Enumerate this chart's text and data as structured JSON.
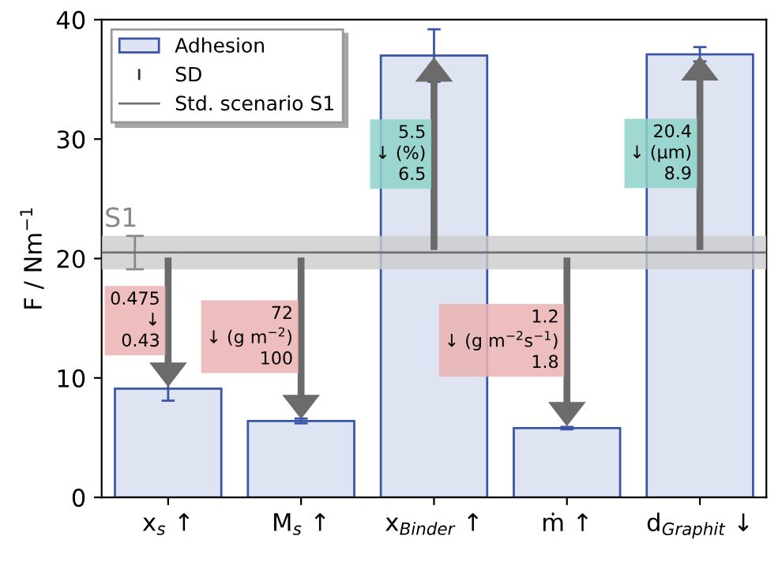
{
  "chart_data": {
    "type": "bar",
    "ylabel": "F / Nm$^{−1}$",
    "categories": [
      "x$_{s}$ ↑",
      "M$_{s}$ ↑",
      "x$_{Binder}$ ↑",
      "ṁ ↑",
      "d$_{Graphit}$ ↓"
    ],
    "series": [
      {
        "name": "Adhesion",
        "color": "#dfe4f2",
        "values": [
          9.1,
          6.4,
          37.0,
          5.8,
          37.1
        ],
        "errors": [
          1.0,
          0.2,
          2.2,
          0.1,
          0.6
        ]
      }
    ],
    "ylim": [
      0,
      40
    ],
    "yticks": [
      0,
      10,
      20,
      30,
      40
    ],
    "grid": false,
    "legend": "top left",
    "ref_lines": [
      {
        "axis": "y",
        "value": 20.5,
        "label": "Std. scenario S1",
        "color": "#707070"
      }
    ],
    "bands": [
      {
        "axis": "y",
        "from": 19.1,
        "to": 21.9,
        "label": "S1",
        "color": "#cccccc"
      }
    ],
    "annotations": [
      "SD",
      "0.475\n↓\n0.43",
      "72\n↓ (g m$^{−2}$)\n100",
      "5.5\n↓ (%)\n6.5",
      "1.2\n↓ (g m$^{−2}$s$^{−1}$)\n1.8",
      "20.4\n↓ (µm)\n8.9"
    ]
  }
}
